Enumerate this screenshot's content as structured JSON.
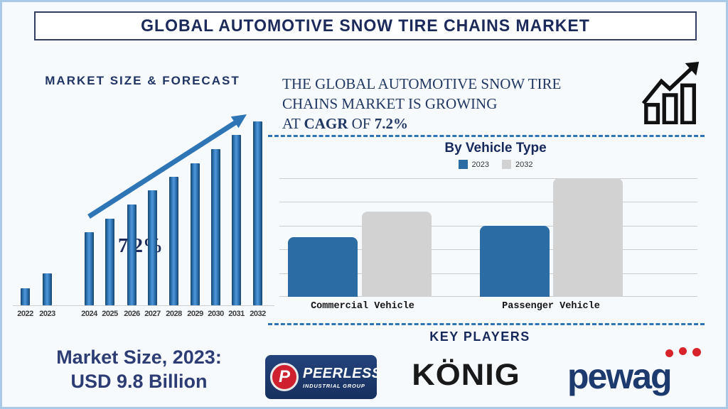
{
  "title": "GLOBAL AUTOMOTIVE SNOW TIRE CHAINS MARKET",
  "forecast": {
    "heading": "MARKET SIZE & FORECAST",
    "market_size_line1": "Market Size, 2023:",
    "market_size_line2": "USD 9.8 Billion"
  },
  "growth_note": {
    "line1": "THE GLOBAL AUTOMOTIVE SNOW TIRE",
    "line2": "CHAINS MARKET IS GROWING",
    "line3_prefix": "AT ",
    "line3_bold1": "CAGR",
    "line3_middle": " OF ",
    "line3_bold2": "7.2%"
  },
  "key_players": {
    "heading": "KEY PLAYERS",
    "peerless_name": "PEERLESS",
    "peerless_sub": "INDUSTRIAL GROUP",
    "peerless_initial": "P",
    "konig_name": "KÖNIG",
    "pewag_name": "pewag"
  },
  "colors": {
    "navy_text": "#1f3864",
    "accent_blue": "#2e75b6",
    "bar_blue_2023": "#2b6ca4",
    "bar_gray_2032": "#d2d2d2",
    "pewag_red": "#d8232a",
    "poster_border": "#aac8e8"
  },
  "chart_data": [
    {
      "id": "market-size-forecast",
      "type": "bar",
      "title": "MARKET SIZE & FORECAST",
      "annotation": "7.2%",
      "categories": [
        "2022",
        "2023",
        "2024",
        "2025",
        "2026",
        "2027",
        "2028",
        "2029",
        "2030",
        "2031",
        "2032"
      ],
      "values_relative": [
        24,
        45,
        103,
        122,
        142,
        162,
        181,
        200,
        220,
        240,
        259
      ],
      "unit": "relative bar height px (no axis values shown)",
      "note": "CAGR 7.2%; Market Size 2023 = USD 9.8 Billion",
      "grid": false,
      "legend_position": "none"
    },
    {
      "id": "by-vehicle-type",
      "type": "bar",
      "title": "By Vehicle Type",
      "categories": [
        "Commercial Vehicle",
        "Passenger Vehicle"
      ],
      "series": [
        {
          "name": "2023",
          "color": "#2b6ca4",
          "values": [
            2.5,
            3.0
          ]
        },
        {
          "name": "2032",
          "color": "#d2d2d2",
          "values": [
            3.6,
            5.0
          ]
        }
      ],
      "unit": "relative units (one gridline spacing = 1 unit; no axis labels shown)",
      "ylim": [
        0,
        5
      ],
      "grid": true,
      "legend_position": "top"
    }
  ]
}
